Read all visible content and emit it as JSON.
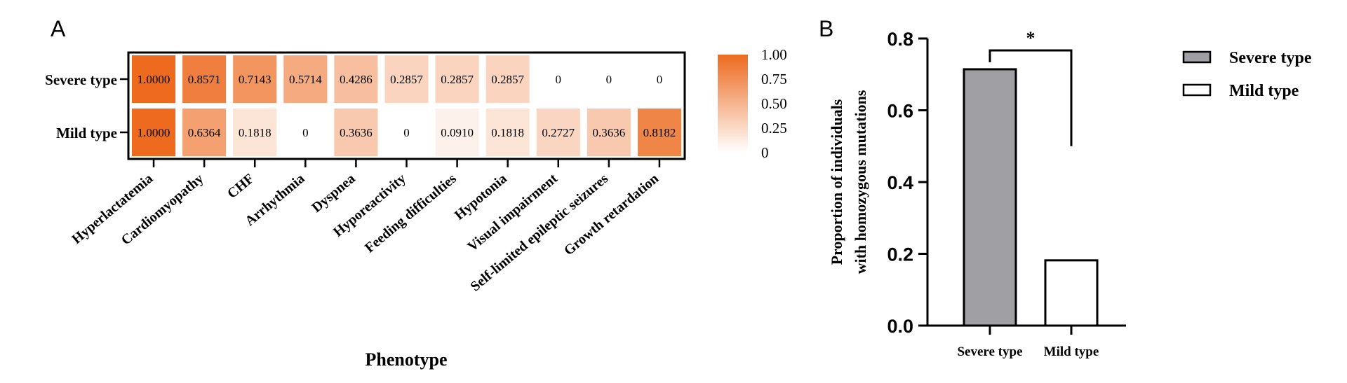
{
  "chart_data": [
    {
      "type": "heatmap",
      "panel": "A",
      "xlabel": "Phenotype",
      "rows": [
        "Severe type",
        "Mild type"
      ],
      "columns": [
        "Hyperlactatemia",
        "Cardiomyopathy",
        "CHF",
        "Arrhythmia",
        "Dyspnea",
        "Hyporeactivity",
        "Feeding difficulties",
        "Hypotonia",
        "Visual impairment",
        "Self-limited epileptic seizures",
        "Growth retardation"
      ],
      "values": [
        [
          1.0,
          0.8571,
          0.7143,
          0.5714,
          0.4286,
          0.2857,
          0.2857,
          0.2857,
          0,
          0,
          0
        ],
        [
          1.0,
          0.6364,
          0.1818,
          0,
          0.3636,
          0,
          0.091,
          0.1818,
          0.2727,
          0.3636,
          0.8182
        ]
      ],
      "labels": [
        [
          "1.0000",
          "0.8571",
          "0.7143",
          "0.5714",
          "0.4286",
          "0.2857",
          "0.2857",
          "0.2857",
          "0",
          "0",
          "0"
        ],
        [
          "1.0000",
          "0.6364",
          "0.1818",
          "0",
          "0.3636",
          "0",
          "0.0910",
          "0.1818",
          "0.2727",
          "0.3636",
          "0.8182"
        ]
      ],
      "colorbar": {
        "range": [
          0,
          1
        ],
        "ticks": [
          "1.00",
          "0.75",
          "0.50",
          "0.25",
          "0"
        ],
        "color_low": "#ffffff",
        "color_high": "#ed6a1f"
      }
    },
    {
      "type": "bar",
      "panel": "B",
      "categories": [
        "Severe type",
        "Mild type"
      ],
      "values": [
        0.7143,
        0.1818
      ],
      "ylabel_lines": [
        "Proportion of individuals",
        "with homozygous mutations"
      ],
      "ylim": [
        0,
        0.8
      ],
      "yticks": [
        "0.0",
        "0.2",
        "0.4",
        "0.6",
        "0.8"
      ],
      "colors": [
        "#a0a0a4",
        "#ffffff"
      ],
      "significance": "*",
      "legend": {
        "placement": "right",
        "entries": [
          {
            "label": "Severe type",
            "color": "#a0a0a4"
          },
          {
            "label": "Mild type",
            "color": "#ffffff"
          }
        ]
      }
    }
  ]
}
